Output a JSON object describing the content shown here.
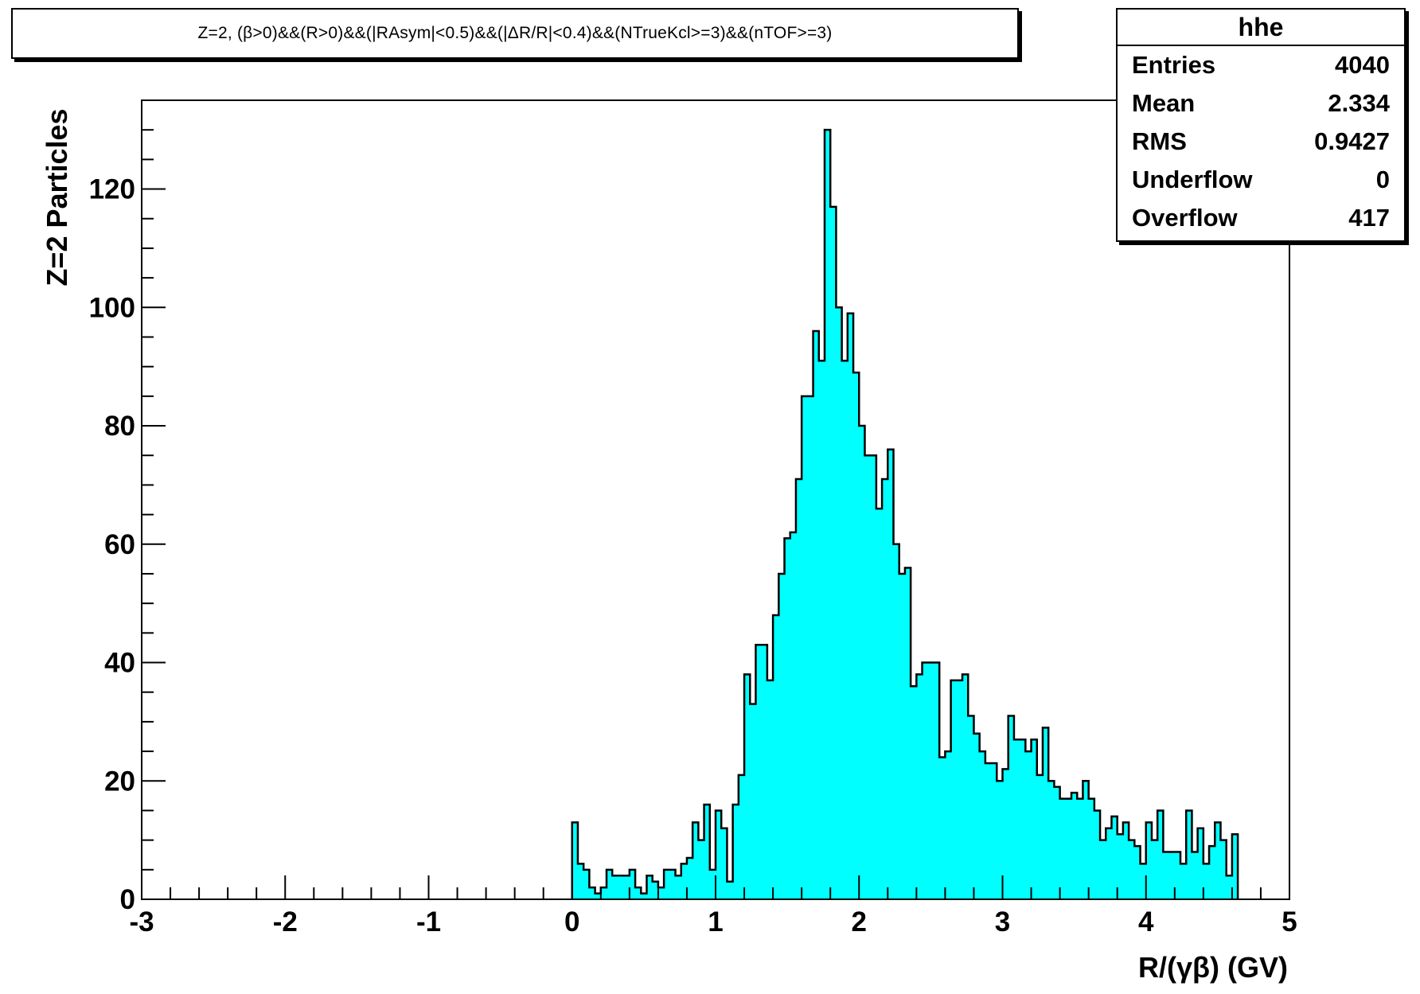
{
  "chart_data": {
    "type": "bar",
    "title": "Z=2, (β>0)&&(R>0)&&(|RAsym|<0.5)&&(|ΔR/R|<0.4)&&(NTrueKcl>=3)&&(nTOF>=3)",
    "xlabel": "R/(γβ) (GV)",
    "ylabel": "Z=2 Particles",
    "xlim": [
      -3,
      5
    ],
    "ylim": [
      0,
      135
    ],
    "x_ticks": [
      "-3",
      "-2",
      "-1",
      "0",
      "1",
      "2",
      "3",
      "4",
      "5"
    ],
    "y_ticks": [
      "0",
      "20",
      "40",
      "60",
      "80",
      "100",
      "120"
    ],
    "bin_width": 0.04,
    "bin_start": 0,
    "fill_color": "#00ffff",
    "values": [
      13,
      6,
      5,
      2,
      1,
      2,
      5,
      4,
      4,
      4,
      5,
      2,
      1,
      4,
      3,
      2,
      5,
      5,
      4,
      6,
      7,
      13,
      10,
      16,
      5,
      15,
      12,
      3,
      16,
      21,
      38,
      33,
      43,
      43,
      37,
      48,
      55,
      61,
      62,
      71,
      85,
      85,
      96,
      91,
      130,
      117,
      100,
      91,
      99,
      89,
      80,
      75,
      75,
      66,
      71,
      76,
      60,
      55,
      56,
      36,
      38,
      40,
      40,
      40,
      24,
      25,
      37,
      37,
      38,
      31,
      28,
      25,
      23,
      23,
      20,
      22,
      31,
      27,
      27,
      25,
      27,
      21,
      29,
      20,
      19,
      17,
      17,
      18,
      17,
      20,
      17,
      15,
      10,
      12,
      14,
      11,
      13,
      10,
      9,
      6,
      13,
      10,
      15,
      8,
      8,
      8,
      6,
      15,
      8,
      12,
      6,
      9,
      13,
      10,
      4,
      11
    ]
  },
  "stats": {
    "name": "hhe",
    "rows": [
      {
        "label": "Entries",
        "value": "4040"
      },
      {
        "label": "Mean",
        "value": "2.334"
      },
      {
        "label": "RMS",
        "value": "0.9427"
      },
      {
        "label": "Underflow",
        "value": "0"
      },
      {
        "label": "Overflow",
        "value": "417"
      }
    ]
  }
}
